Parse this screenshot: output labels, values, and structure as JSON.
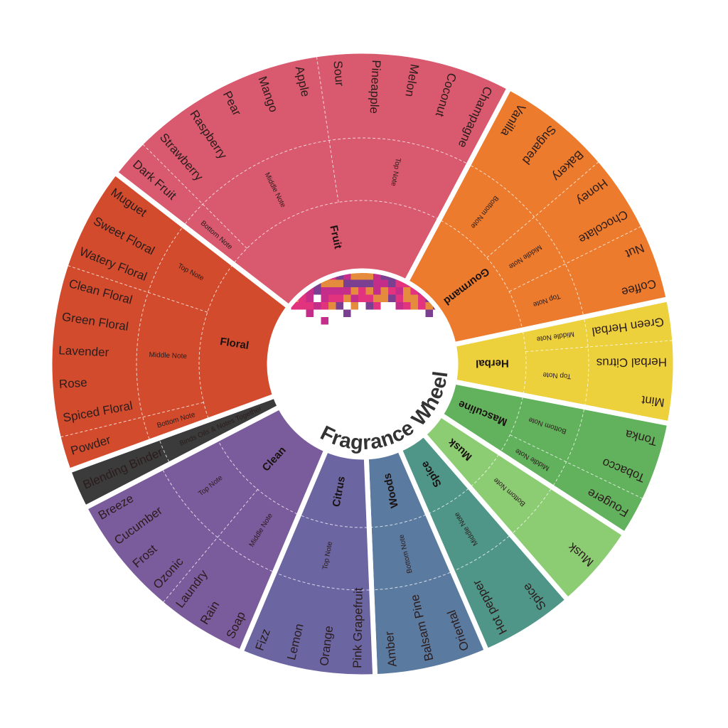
{
  "title": "Fragrance Wheel",
  "mosaic_palette": [
    "#e2337f",
    "#7a3f90",
    "#e48b3d",
    "#c42e8a"
  ],
  "categories": [
    {
      "label": "Fruit",
      "color": "#d9596f",
      "notes": [
        {
          "label": "Bottom Note",
          "items": [
            "Dark Fruit"
          ]
        },
        {
          "label": "Middle Note",
          "items": [
            "Strawberry",
            "Raspberry",
            "Pear",
            "Mango",
            "Apple"
          ]
        },
        {
          "label": "Top Note",
          "items": [
            "Sour",
            "Pineapple",
            "Melon",
            "Coconut",
            "Champagne"
          ]
        }
      ]
    },
    {
      "label": "Gourmand",
      "color": "#ec7b2d",
      "notes": [
        {
          "label": "Bottom Note",
          "items": [
            "Vanilla",
            "Sugared",
            "Bakery"
          ]
        },
        {
          "label": "Middle Note",
          "items": [
            "Honey",
            "Chocolate"
          ]
        },
        {
          "label": "Top Note",
          "items": [
            "Nut",
            "Coffee"
          ]
        }
      ]
    },
    {
      "label": "Herbal",
      "color": "#ecd03c",
      "notes": [
        {
          "label": "Middle Note",
          "items": [
            "Green Herbal"
          ]
        },
        {
          "label": "Top Note",
          "items": [
            "Herbal Citrus",
            "Mint"
          ]
        }
      ]
    },
    {
      "label": "Masculine",
      "color": "#62b15d",
      "notes": [
        {
          "label": "Bottom Note",
          "items": [
            "Tonka",
            "Tobacco"
          ]
        },
        {
          "label": "Middle Note",
          "items": [
            "Fougere"
          ]
        }
      ]
    },
    {
      "label": "Musk",
      "color": "#8ccd74",
      "notes": [
        {
          "label": "Bottom Note",
          "items": [
            "Musk"
          ]
        }
      ]
    },
    {
      "label": "Spice",
      "color": "#4f9688",
      "notes": [
        {
          "label": "Middle Note",
          "items": [
            "Spice",
            "Hot pepper"
          ]
        }
      ]
    },
    {
      "label": "Woods",
      "color": "#5b7aa0",
      "notes": [
        {
          "label": "Bottom Note",
          "items": [
            "Oriental",
            "Balsam Pine",
            "Amber"
          ]
        }
      ]
    },
    {
      "label": "Citrus",
      "color": "#6b65a2",
      "notes": [
        {
          "label": "Top Note",
          "items": [
            "Pink Grapefruit",
            "Orange",
            "Lemon",
            "Fizz"
          ]
        }
      ]
    },
    {
      "label": "Clean",
      "color": "#7a5b9c",
      "notes": [
        {
          "label": "Middle Note",
          "items": [
            "Soap",
            "Rain",
            "Laundry"
          ]
        },
        {
          "label": "Top Note",
          "items": [
            "Ozonic",
            "Frost",
            "Cucumber",
            "Breeze"
          ]
        }
      ]
    },
    {
      "label": "",
      "color": "#3b3b3b",
      "notes": [
        {
          "label": "Binds Oils & Notes Together",
          "items": [
            "Blending Binder"
          ]
        }
      ]
    },
    {
      "label": "Floral",
      "color": "#d24b2d",
      "notes": [
        {
          "label": "Bottom Note",
          "items": [
            "Powder"
          ]
        },
        {
          "label": "Middle Note",
          "items": [
            "Spiced Floral",
            "Rose",
            "Lavender",
            "Green Floral",
            "Clean Floral"
          ]
        },
        {
          "label": "Top Note",
          "items": [
            "Watery Floral",
            "Sweet Floral",
            "Muguet"
          ]
        }
      ]
    }
  ]
}
